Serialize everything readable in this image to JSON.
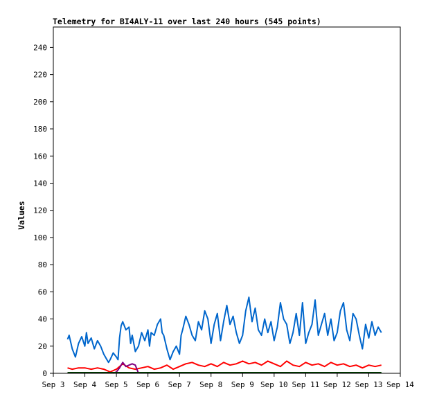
{
  "chart_data": {
    "type": "line",
    "title": "Telemetry for BI4ALY-11 over last 240 hours (545 points)",
    "ylabel": "Values",
    "xlabel": "",
    "ylim": [
      0,
      255
    ],
    "yticks": [
      0,
      20,
      40,
      60,
      80,
      100,
      120,
      140,
      160,
      180,
      200,
      220,
      240
    ],
    "xlim": [
      3.0,
      14.0
    ],
    "xticks": [
      {
        "pos": 3,
        "label": "Sep 3"
      },
      {
        "pos": 4,
        "label": "Sep 4"
      },
      {
        "pos": 5,
        "label": "Sep 5"
      },
      {
        "pos": 6,
        "label": "Sep 6"
      },
      {
        "pos": 7,
        "label": "Sep 7"
      },
      {
        "pos": 8,
        "label": "Sep 8"
      },
      {
        "pos": 9,
        "label": "Sep 9"
      },
      {
        "pos": 10,
        "label": "Sep 10"
      },
      {
        "pos": 11,
        "label": "Sep 11"
      },
      {
        "pos": 12,
        "label": "Sep 12"
      },
      {
        "pos": 13,
        "label": "Sep 13"
      },
      {
        "pos": 14,
        "label": "Sep 14"
      }
    ],
    "grid": false,
    "series": [
      {
        "color": "#0066cc",
        "x": [
          3.45,
          3.5,
          3.6,
          3.7,
          3.8,
          3.9,
          4.0,
          4.05,
          4.1,
          4.2,
          4.3,
          4.4,
          4.5,
          4.6,
          4.7,
          4.75,
          4.8,
          4.9,
          5.0,
          5.05,
          5.1,
          5.15,
          5.2,
          5.3,
          5.4,
          5.45,
          5.5,
          5.6,
          5.7,
          5.8,
          5.9,
          6.0,
          6.05,
          6.1,
          6.2,
          6.3,
          6.4,
          6.45,
          6.5,
          6.6,
          6.7,
          6.8,
          6.9,
          7.0,
          7.05,
          7.1,
          7.2,
          7.3,
          7.4,
          7.5,
          7.6,
          7.7,
          7.8,
          7.9,
          8.0,
          8.1,
          8.2,
          8.3,
          8.4,
          8.5,
          8.6,
          8.7,
          8.8,
          8.9,
          9.0,
          9.1,
          9.2,
          9.3,
          9.4,
          9.5,
          9.6,
          9.7,
          9.8,
          9.9,
          10.0,
          10.1,
          10.2,
          10.3,
          10.4,
          10.5,
          10.6,
          10.7,
          10.8,
          10.9,
          11.0,
          11.1,
          11.2,
          11.3,
          11.4,
          11.5,
          11.6,
          11.7,
          11.8,
          11.9,
          12.0,
          12.1,
          12.2,
          12.3,
          12.4,
          12.5,
          12.6,
          12.7,
          12.8,
          12.9,
          13.0,
          13.1,
          13.2,
          13.3,
          13.4
        ],
        "y": [
          25,
          28,
          18,
          12,
          22,
          27,
          20,
          30,
          22,
          26,
          18,
          24,
          20,
          14,
          10,
          8,
          10,
          15,
          12,
          10,
          26,
          35,
          38,
          32,
          34,
          22,
          28,
          16,
          20,
          30,
          24,
          32,
          20,
          30,
          28,
          36,
          40,
          30,
          28,
          18,
          10,
          16,
          20,
          14,
          28,
          32,
          42,
          36,
          28,
          24,
          38,
          32,
          46,
          40,
          22,
          36,
          44,
          24,
          38,
          50,
          36,
          42,
          30,
          22,
          28,
          46,
          56,
          38,
          48,
          32,
          28,
          40,
          30,
          38,
          24,
          34,
          52,
          40,
          36,
          22,
          30,
          44,
          28,
          52,
          22,
          30,
          36,
          54,
          28,
          36,
          44,
          28,
          40,
          24,
          30,
          46,
          52,
          32,
          24,
          44,
          40,
          28,
          18,
          36,
          26,
          38,
          28,
          34,
          30
        ]
      },
      {
        "color": "#ff0000",
        "x": [
          3.45,
          3.6,
          3.8,
          4.0,
          4.2,
          4.4,
          4.6,
          4.8,
          5.0,
          5.1,
          5.2,
          5.4,
          5.6,
          5.8,
          6.0,
          6.2,
          6.4,
          6.6,
          6.8,
          7.0,
          7.2,
          7.4,
          7.6,
          7.8,
          8.0,
          8.2,
          8.4,
          8.6,
          8.8,
          9.0,
          9.2,
          9.4,
          9.6,
          9.8,
          10.0,
          10.2,
          10.4,
          10.6,
          10.8,
          11.0,
          11.2,
          11.4,
          11.6,
          11.8,
          12.0,
          12.2,
          12.4,
          12.6,
          12.8,
          13.0,
          13.2,
          13.4
        ],
        "y": [
          4,
          3,
          4,
          4,
          3,
          4,
          3,
          1,
          3,
          5,
          7,
          4,
          3,
          4,
          5,
          3,
          4,
          6,
          3,
          5,
          7,
          8,
          6,
          5,
          7,
          5,
          8,
          6,
          7,
          9,
          7,
          8,
          6,
          9,
          7,
          5,
          9,
          6,
          5,
          8,
          6,
          7,
          5,
          8,
          6,
          7,
          5,
          6,
          4,
          6,
          5,
          6
        ]
      },
      {
        "color": "#800080",
        "x": [
          4.9,
          5.0,
          5.1,
          5.2,
          5.3,
          5.4,
          5.5,
          5.6,
          5.7
        ],
        "y": [
          0,
          1,
          4,
          8,
          5,
          6,
          7,
          6,
          0
        ]
      },
      {
        "color": "#00cc00",
        "x": [
          3.45,
          13.4
        ],
        "y": [
          0.5,
          0.5
        ]
      },
      {
        "color": "#000000",
        "x": [
          3.45,
          13.4
        ],
        "y": [
          0.3,
          0.3
        ]
      }
    ]
  }
}
